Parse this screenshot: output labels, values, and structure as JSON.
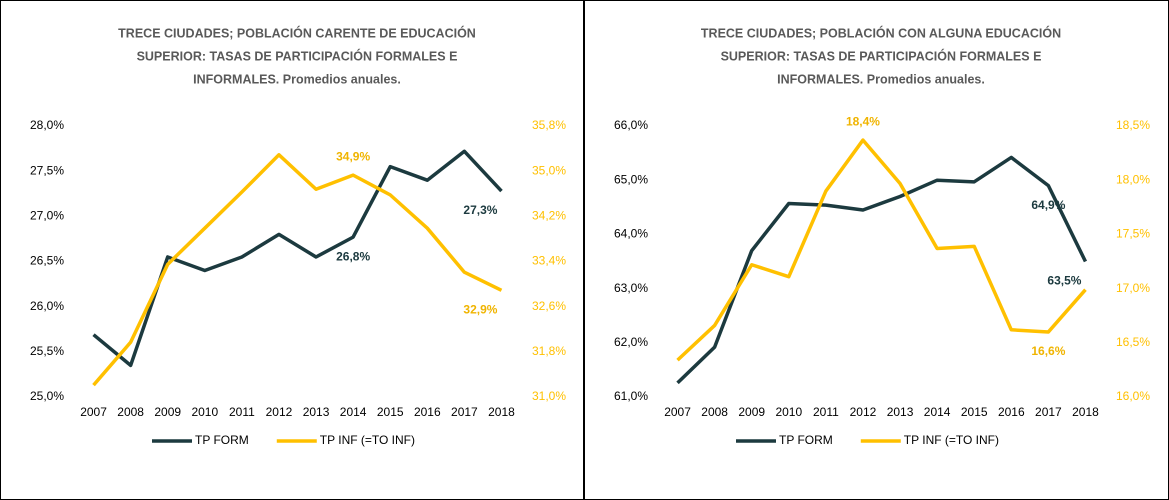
{
  "chart_data": [
    {
      "type": "line",
      "title": [
        "TRECE CIUDADES; POBLACIÓN CARENTE DE EDUCACIÓN",
        "SUPERIOR: TASAS DE PARTICIPACIÓN FORMALES E",
        "INFORMALES. Promedios anuales."
      ],
      "categories": [
        "2007",
        "2008",
        "2009",
        "2010",
        "2011",
        "2012",
        "2013",
        "2014",
        "2015",
        "2016",
        "2017",
        "2018"
      ],
      "series": [
        {
          "name": "TP FORM",
          "color": "#1c3a3f",
          "values": [
            25.69,
            25.35,
            26.55,
            26.4,
            26.55,
            26.8,
            26.55,
            26.77,
            27.55,
            27.4,
            27.72,
            27.28
          ],
          "value_labels": [
            null,
            null,
            null,
            null,
            null,
            null,
            null,
            "26,8%",
            null,
            null,
            null,
            "27,3%"
          ]
        },
        {
          "name": "TP INF (=TO INF)",
          "color": "#ffc000",
          "axis": "y2",
          "values": [
            31.21,
            31.97,
            33.35,
            33.99,
            34.63,
            35.29,
            34.68,
            34.93,
            34.58,
            33.99,
            33.21,
            32.89
          ],
          "value_labels": [
            null,
            null,
            null,
            null,
            null,
            null,
            null,
            "34,9%",
            null,
            null,
            null,
            "32,9%"
          ]
        }
      ],
      "ylim": [
        25.0,
        28.0
      ],
      "yticks": [
        {
          "value": 25.0,
          "label": "25,0%"
        },
        {
          "value": 25.5,
          "label": "25,5%"
        },
        {
          "value": 26.0,
          "label": "26,0%"
        },
        {
          "value": 26.5,
          "label": "26,5%"
        },
        {
          "value": 27.0,
          "label": "27,0%"
        },
        {
          "value": 27.5,
          "label": "27,5%"
        },
        {
          "value": 28.0,
          "label": "28,0%"
        }
      ],
      "y2lim": [
        31.0,
        35.8
      ],
      "y2ticks": [
        {
          "value": 31.0,
          "label": "31,0%"
        },
        {
          "value": 31.8,
          "label": "31,8%"
        },
        {
          "value": 32.6,
          "label": "32,6%"
        },
        {
          "value": 33.4,
          "label": "33,4%"
        },
        {
          "value": 34.2,
          "label": "34,2%"
        },
        {
          "value": 35.0,
          "label": "35,0%"
        },
        {
          "value": 35.8,
          "label": "35,8%"
        }
      ],
      "y2color": "#ffc000",
      "grid": false,
      "legend": "bottom"
    },
    {
      "type": "line",
      "title": [
        "TRECE CIUDADES; POBLACIÓN CON ALGUNA EDUCACIÓN",
        "SUPERIOR: TASAS DE PARTICIPACIÓN FORMALES E",
        "INFORMALES. Promedios anuales."
      ],
      "categories": [
        "2007",
        "2008",
        "2009",
        "2010",
        "2011",
        "2012",
        "2013",
        "2014",
        "2015",
        "2016",
        "2017",
        "2018"
      ],
      "series": [
        {
          "name": "TP FORM",
          "color": "#1c3a3f",
          "values": [
            61.26,
            61.92,
            63.7,
            64.57,
            64.54,
            64.45,
            64.7,
            65.0,
            64.97,
            65.42,
            64.9,
            63.5
          ],
          "value_labels": [
            null,
            null,
            null,
            null,
            null,
            null,
            null,
            null,
            null,
            null,
            "64,9%",
            "63,5%"
          ]
        },
        {
          "name": "TP INF (=TO INF)",
          "color": "#ffc000",
          "axis": "y2",
          "values": [
            16.34,
            16.66,
            17.22,
            17.11,
            17.9,
            18.37,
            17.97,
            17.37,
            17.39,
            16.62,
            16.6,
            16.99
          ],
          "value_labels": [
            null,
            null,
            null,
            null,
            null,
            "18,4%",
            null,
            null,
            null,
            null,
            "16,6%",
            null
          ]
        }
      ],
      "ylim": [
        61.0,
        66.0
      ],
      "yticks": [
        {
          "value": 61.0,
          "label": "61,0%"
        },
        {
          "value": 62.0,
          "label": "62,0%"
        },
        {
          "value": 63.0,
          "label": "63,0%"
        },
        {
          "value": 64.0,
          "label": "64,0%"
        },
        {
          "value": 65.0,
          "label": "65,0%"
        },
        {
          "value": 66.0,
          "label": "66,0%"
        }
      ],
      "y2lim": [
        16.0,
        18.5
      ],
      "y2ticks": [
        {
          "value": 16.0,
          "label": "16,0%"
        },
        {
          "value": 16.5,
          "label": "16,5%"
        },
        {
          "value": 17.0,
          "label": "17,0%"
        },
        {
          "value": 17.5,
          "label": "17,5%"
        },
        {
          "value": 18.0,
          "label": "18,0%"
        },
        {
          "value": 18.5,
          "label": "18,5%"
        }
      ],
      "y2color": "#ffc000",
      "grid": false,
      "legend": "bottom"
    }
  ]
}
